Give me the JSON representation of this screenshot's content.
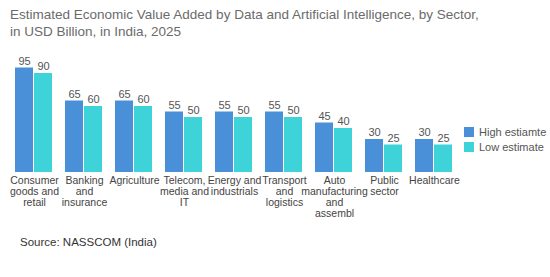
{
  "chart_data": {
    "type": "bar",
    "title": "Estimated Economic Value Added by Data and Artificial Intelligence, by Sector, in USD Billion, in India, 2025",
    "source": "Source: NASSCOM (India)",
    "categories": [
      "Consumer goods and retail",
      "Banking and insurance",
      "Agriculture",
      "Telecom, media and IT",
      "Energy and industrials",
      "Transport and logistics",
      "Auto manufacturing and assembl",
      "Public sector",
      "Healthcare"
    ],
    "series": [
      {
        "name": "High estiamte",
        "color": "#4a90d9",
        "values": [
          95,
          65,
          65,
          55,
          55,
          55,
          45,
          30,
          30
        ]
      },
      {
        "name": "Low estimate",
        "color": "#3ed3d8",
        "values": [
          90,
          60,
          60,
          50,
          50,
          50,
          40,
          25,
          25
        ]
      }
    ],
    "ylim": [
      0,
      100
    ],
    "data_labels": true,
    "tick_labels": "x",
    "legend": "right"
  }
}
